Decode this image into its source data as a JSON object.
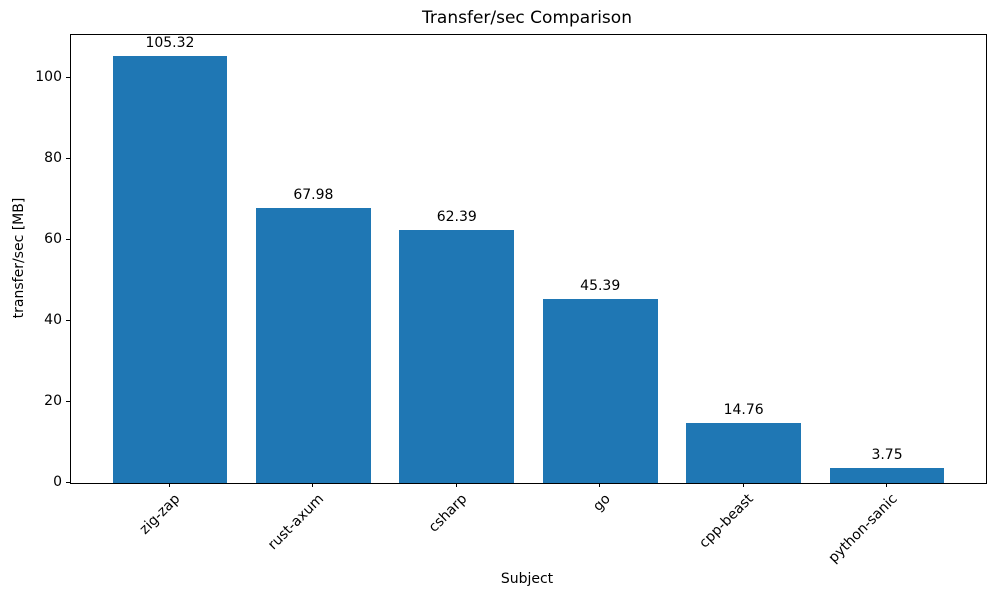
{
  "chart_data": {
    "type": "bar",
    "title": "Transfer/sec Comparison",
    "xlabel": "Subject",
    "ylabel": "transfer/sec [MB]",
    "categories": [
      "zig-zap",
      "rust-axum",
      "csharp",
      "go",
      "cpp-beast",
      "python-sanic"
    ],
    "values": [
      105.32,
      67.98,
      62.39,
      45.39,
      14.76,
      3.75
    ],
    "value_labels": [
      "105.32",
      "67.98",
      "62.39",
      "45.39",
      "14.76",
      "3.75"
    ],
    "bar_color": "#1f77b4",
    "yticks": [
      0,
      20,
      40,
      60,
      80,
      100
    ],
    "ylim": [
      0,
      110.6
    ],
    "grid": false,
    "legend": null,
    "x_tick_rotation_deg": 45
  }
}
